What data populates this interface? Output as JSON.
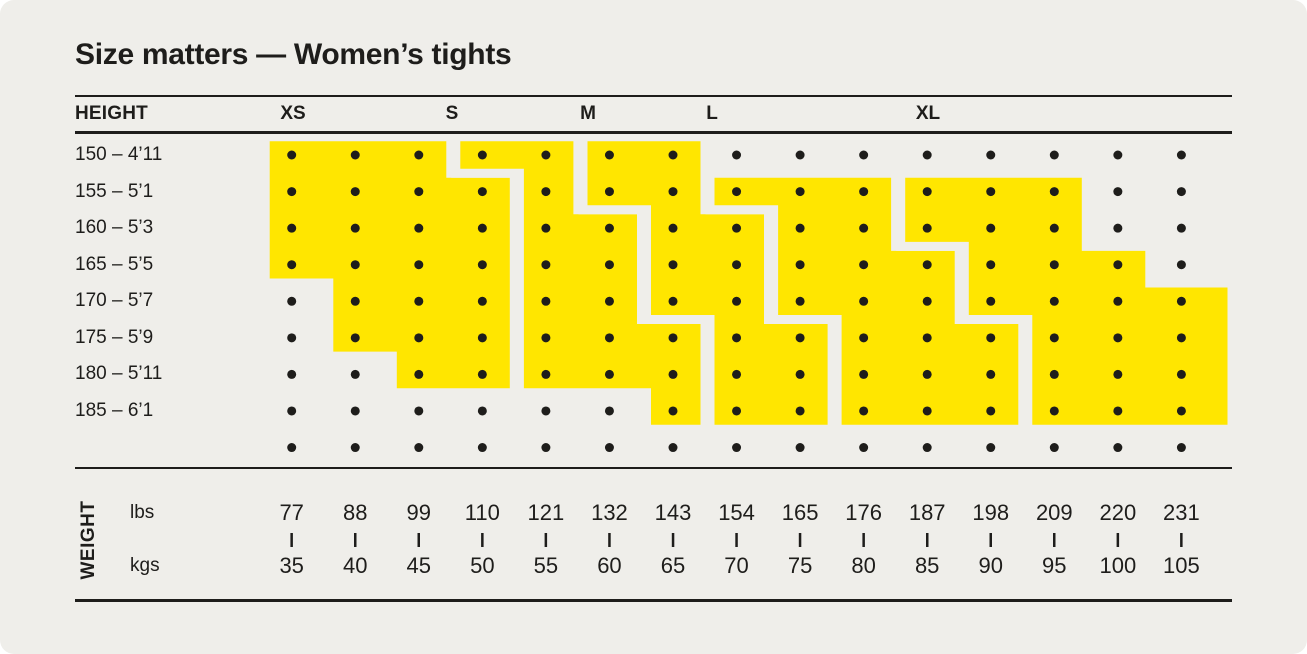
{
  "title": "Size matters — Women’s tights",
  "table": {
    "height_header": "HEIGHT",
    "weight_axis_label": "WEIGHT",
    "size_headers": [
      "XS",
      "S",
      "M",
      "L",
      "XL"
    ],
    "height_rows": [
      "150 – 4’11",
      "155 – 5’1",
      "160 – 5’3",
      "165 – 5’5",
      "170 – 5’7",
      "175 – 5’9",
      "180 – 5’11",
      "185 – 6’1"
    ],
    "unit_rows": [
      {
        "label": "lbs",
        "values": [
          "77",
          "88",
          "99",
          "110",
          "121",
          "132",
          "143",
          "154",
          "165",
          "176",
          "187",
          "198",
          "209",
          "220",
          "231"
        ]
      },
      {
        "label": "kgs",
        "values": [
          "35",
          "40",
          "45",
          "50",
          "55",
          "60",
          "65",
          "70",
          "75",
          "80",
          "85",
          "90",
          "95",
          "100",
          "105"
        ]
      }
    ]
  },
  "chart_data": {
    "type": "heatmap",
    "title": "Size matters — Women’s tights",
    "xlabel": "WEIGHT",
    "ylabel": "HEIGHT",
    "x_weights_lbs": [
      77,
      88,
      99,
      110,
      121,
      132,
      143,
      154,
      165,
      176,
      187,
      198,
      209,
      220,
      231
    ],
    "x_weights_kgs": [
      35,
      40,
      45,
      50,
      55,
      60,
      65,
      70,
      75,
      80,
      85,
      90,
      95,
      100,
      105
    ],
    "y_heights_cm": [
      150,
      155,
      160,
      165,
      170,
      175,
      180,
      185
    ],
    "y_heights_ft": [
      "4’11",
      "5’1",
      "5’3",
      "5’5",
      "5’7",
      "5’9",
      "5’11",
      "6’1"
    ],
    "grid": {
      "columns": 15,
      "dot_rows": 9,
      "note": "9th dot row has no height label and no yellow region"
    },
    "regions": [
      {
        "size": "XS",
        "first_row": 1,
        "col_ranges": [
          [
            1,
            3
          ],
          [
            1,
            4
          ],
          [
            1,
            4
          ],
          [
            1,
            4
          ],
          [
            2,
            4
          ],
          [
            2,
            4
          ],
          [
            3,
            4
          ]
        ]
      },
      {
        "size": "S",
        "first_row": 1,
        "col_ranges": [
          [
            4,
            5
          ],
          [
            5,
            5
          ],
          [
            5,
            6
          ],
          [
            5,
            6
          ],
          [
            5,
            6
          ],
          [
            5,
            7
          ],
          [
            5,
            7
          ],
          [
            7,
            7
          ]
        ]
      },
      {
        "size": "M",
        "first_row": 1,
        "col_ranges": [
          [
            6,
            7
          ],
          [
            6,
            7
          ],
          [
            7,
            8
          ],
          [
            7,
            8
          ],
          [
            7,
            8
          ],
          [
            8,
            9
          ],
          [
            8,
            9
          ],
          [
            8,
            9
          ]
        ]
      },
      {
        "size": "L",
        "first_row": 2,
        "col_ranges": [
          [
            8,
            10
          ],
          [
            9,
            10
          ],
          [
            9,
            11
          ],
          [
            9,
            11
          ],
          [
            10,
            12
          ],
          [
            10,
            12
          ],
          [
            10,
            12
          ]
        ]
      },
      {
        "size": "XL",
        "first_row": 2,
        "col_ranges": [
          [
            11,
            13
          ],
          [
            11,
            13
          ],
          [
            12,
            14
          ],
          [
            12,
            15
          ],
          [
            13,
            15
          ],
          [
            13,
            15
          ],
          [
            13,
            15
          ]
        ]
      }
    ],
    "colors": {
      "region_fill": "#FFE600",
      "dot": "#1E1D1B",
      "background": "#EFEEEA",
      "text": "#1E1D1B"
    },
    "legend_position": "none",
    "grid_dots": true
  }
}
